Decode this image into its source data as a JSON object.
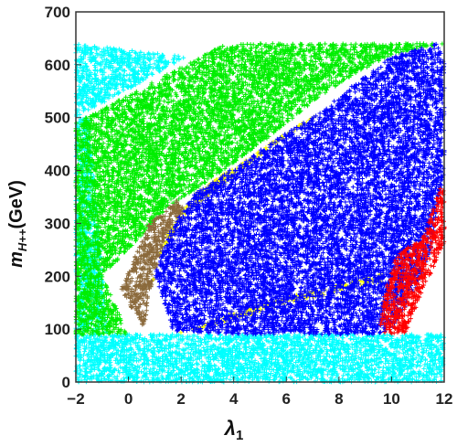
{
  "chart_data": {
    "type": "scatter",
    "title": "",
    "xlabel": "λ",
    "xlabel_sub": "1",
    "ylabel": "m",
    "ylabel_sub": "H++",
    "ylabel_unit": "(GeV)",
    "xlim": [
      -2,
      12
    ],
    "ylim": [
      0,
      700
    ],
    "xticks": [
      -2,
      0,
      2,
      4,
      6,
      8,
      10,
      12
    ],
    "yticks": [
      0,
      100,
      200,
      300,
      400,
      500,
      600,
      700
    ],
    "marker": "+",
    "grid": false,
    "legend": "none",
    "regions": [
      {
        "color": "#00ffff",
        "polygons": [
          [
            [
              -2,
              0
            ],
            [
              12,
              0
            ],
            [
              12,
              90
            ],
            [
              -2,
              90
            ]
          ],
          [
            [
              -2,
              90
            ],
            [
              -0.8,
              90
            ],
            [
              -1.5,
              500
            ],
            [
              -2,
              500
            ]
          ],
          [
            [
              -2,
              500
            ],
            [
              2.2,
              615
            ],
            [
              -2,
              640
            ]
          ]
        ]
      },
      {
        "color": "#00ee00",
        "polygons": [
          [
            [
              -2,
              90
            ],
            [
              0,
              90
            ],
            [
              -1,
              200
            ],
            [
              1.5,
              330
            ],
            [
              3,
              380
            ],
            [
              5,
              450
            ],
            [
              7,
              530
            ],
            [
              8.5,
              580
            ],
            [
              10,
              620
            ],
            [
              12,
              640
            ],
            [
              3.7,
              640
            ],
            [
              -2,
              490
            ]
          ]
        ]
      },
      {
        "color": "#8b6a3c",
        "polygons": [
          [
            [
              0.6,
              100
            ],
            [
              -0.3,
              175
            ],
            [
              0.8,
              300
            ],
            [
              1.9,
              345
            ],
            [
              2.2,
              320
            ],
            [
              1.2,
              240
            ],
            [
              0.8,
              170
            ]
          ]
        ]
      },
      {
        "color": "#ffff00",
        "polygons": [
          [
            [
              0.8,
              170
            ],
            [
              1.2,
              240
            ],
            [
              2.2,
              320
            ],
            [
              3.5,
              370
            ],
            [
              5,
              430
            ],
            [
              6.5,
              480
            ],
            [
              7.3,
              510
            ],
            [
              5.5,
              455
            ],
            [
              4,
              405
            ],
            [
              2.5,
              355
            ],
            [
              1.5,
              280
            ],
            [
              1,
              200
            ]
          ],
          [
            [
              1.5,
              85
            ],
            [
              4,
              130
            ],
            [
              6,
              160
            ],
            [
              8,
              185
            ],
            [
              9.6,
              205
            ],
            [
              9.8,
              192
            ],
            [
              8,
              172
            ],
            [
              6,
              148
            ],
            [
              4,
              118
            ]
          ]
        ]
      },
      {
        "color": "#0000ff",
        "polygons": [
          [
            [
              1.7,
              95
            ],
            [
              1,
              200
            ],
            [
              1.5,
              280
            ],
            [
              2.5,
              355
            ],
            [
              4,
              405
            ],
            [
              5.5,
              455
            ],
            [
              7.3,
              510
            ],
            [
              8.5,
              560
            ],
            [
              10,
              615
            ],
            [
              11.7,
              640
            ],
            [
              12,
              610
            ],
            [
              12,
              400
            ],
            [
              11.5,
              250
            ],
            [
              11,
              185
            ],
            [
              10,
              100
            ],
            [
              9.4,
              90
            ],
            [
              5,
              90
            ]
          ]
        ]
      },
      {
        "color": "#ff0000",
        "polygons": [
          [
            [
              9.5,
              90
            ],
            [
              10.5,
              90
            ],
            [
              12,
              265
            ],
            [
              12,
              390
            ],
            [
              11.2,
              275
            ],
            [
              10.2,
              240
            ],
            [
              9.8,
              180
            ]
          ]
        ]
      }
    ]
  }
}
